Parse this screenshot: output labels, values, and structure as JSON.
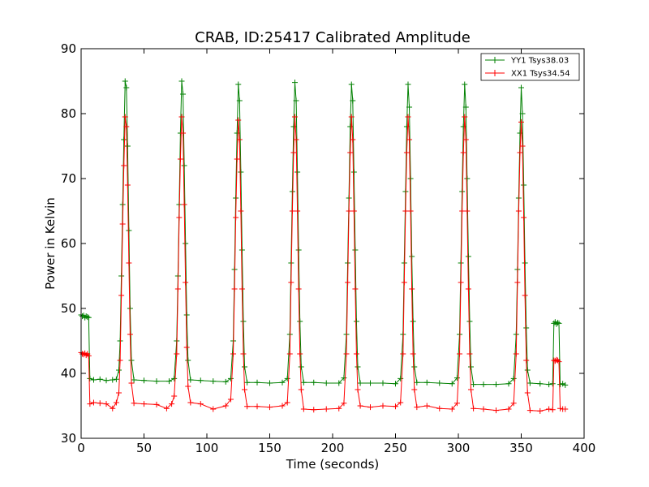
{
  "chart_data": {
    "type": "line",
    "title": "CRAB, ID:25417 Calibrated Amplitude",
    "xlabel": "Time (seconds)",
    "ylabel": "Power in Kelvin",
    "xlim": [
      0,
      400
    ],
    "ylim": [
      30,
      90
    ],
    "xticks": [
      0,
      50,
      100,
      150,
      200,
      250,
      300,
      350,
      400
    ],
    "yticks": [
      30,
      40,
      50,
      60,
      70,
      80,
      90
    ],
    "xtick_labels": [
      "0",
      "50",
      "100",
      "150",
      "200",
      "250",
      "300",
      "350",
      "400"
    ],
    "ytick_labels": [
      "30",
      "40",
      "50",
      "60",
      "70",
      "80",
      "90"
    ],
    "grid": false,
    "legend_position": "top-right",
    "marker": "+",
    "series": [
      {
        "name": "YY1 Tsys38.03",
        "color": "#008000",
        "points": [
          [
            0,
            49
          ],
          [
            1,
            48.8
          ],
          [
            2,
            48.9
          ],
          [
            3,
            48.6
          ],
          [
            4,
            48.8
          ],
          [
            5,
            48.7
          ],
          [
            6,
            48.6
          ],
          [
            7,
            39.2
          ],
          [
            10,
            39.0
          ],
          [
            15,
            39.1
          ],
          [
            20,
            38.9
          ],
          [
            25,
            39.0
          ],
          [
            28,
            39.1
          ],
          [
            30,
            40.5
          ],
          [
            31,
            45
          ],
          [
            32,
            55
          ],
          [
            33,
            66
          ],
          [
            34,
            76
          ],
          [
            35,
            85
          ],
          [
            36,
            84
          ],
          [
            37,
            75
          ],
          [
            38,
            62
          ],
          [
            39,
            50
          ],
          [
            40,
            42
          ],
          [
            42,
            39.0
          ],
          [
            50,
            38.9
          ],
          [
            60,
            38.8
          ],
          [
            70,
            38.8
          ],
          [
            74,
            39.2
          ],
          [
            76,
            45
          ],
          [
            77,
            55
          ],
          [
            78,
            66
          ],
          [
            79,
            77
          ],
          [
            80,
            85
          ],
          [
            81,
            83
          ],
          [
            82,
            72
          ],
          [
            83,
            60
          ],
          [
            84,
            49
          ],
          [
            85,
            42
          ],
          [
            87,
            39.0
          ],
          [
            95,
            38.9
          ],
          [
            105,
            38.8
          ],
          [
            115,
            38.7
          ],
          [
            119,
            39.2
          ],
          [
            121,
            45
          ],
          [
            122,
            56
          ],
          [
            123,
            67
          ],
          [
            124,
            77
          ],
          [
            125,
            84.5
          ],
          [
            126,
            82
          ],
          [
            127,
            71
          ],
          [
            128,
            59
          ],
          [
            129,
            48
          ],
          [
            130,
            41
          ],
          [
            132,
            38.6
          ],
          [
            140,
            38.6
          ],
          [
            150,
            38.5
          ],
          [
            160,
            38.6
          ],
          [
            164,
            39.2
          ],
          [
            166,
            46
          ],
          [
            167,
            57
          ],
          [
            168,
            68
          ],
          [
            169,
            78
          ],
          [
            170,
            84.8
          ],
          [
            171,
            82
          ],
          [
            172,
            71
          ],
          [
            173,
            59
          ],
          [
            174,
            48
          ],
          [
            175,
            41
          ],
          [
            177,
            38.6
          ],
          [
            185,
            38.6
          ],
          [
            195,
            38.5
          ],
          [
            205,
            38.5
          ],
          [
            209,
            39.3
          ],
          [
            211,
            46
          ],
          [
            212,
            57
          ],
          [
            213,
            67
          ],
          [
            214,
            78
          ],
          [
            215,
            84.5
          ],
          [
            216,
            82
          ],
          [
            217,
            71
          ],
          [
            218,
            59
          ],
          [
            219,
            48
          ],
          [
            220,
            41
          ],
          [
            222,
            38.5
          ],
          [
            230,
            38.5
          ],
          [
            240,
            38.5
          ],
          [
            250,
            38.4
          ],
          [
            254,
            39.2
          ],
          [
            256,
            46
          ],
          [
            257,
            57
          ],
          [
            258,
            68
          ],
          [
            259,
            78
          ],
          [
            260,
            84.5
          ],
          [
            261,
            81
          ],
          [
            262,
            70
          ],
          [
            263,
            58
          ],
          [
            264,
            48
          ],
          [
            265,
            41
          ],
          [
            267,
            38.6
          ],
          [
            275,
            38.6
          ],
          [
            285,
            38.5
          ],
          [
            295,
            38.4
          ],
          [
            299,
            39.3
          ],
          [
            301,
            46
          ],
          [
            302,
            57
          ],
          [
            303,
            68
          ],
          [
            304,
            78
          ],
          [
            305,
            84.5
          ],
          [
            306,
            81
          ],
          [
            307,
            70
          ],
          [
            308,
            58
          ],
          [
            309,
            48
          ],
          [
            310,
            41
          ],
          [
            312,
            38.3
          ],
          [
            320,
            38.3
          ],
          [
            330,
            38.3
          ],
          [
            340,
            38.4
          ],
          [
            344,
            39.2
          ],
          [
            346,
            46
          ],
          [
            347,
            56
          ],
          [
            348,
            67
          ],
          [
            349,
            77
          ],
          [
            350,
            84
          ],
          [
            351,
            80
          ],
          [
            352,
            69
          ],
          [
            353,
            57
          ],
          [
            354,
            47
          ],
          [
            355,
            40.5
          ],
          [
            357,
            38.5
          ],
          [
            365,
            38.4
          ],
          [
            372,
            38.3
          ],
          [
            375,
            38.4
          ],
          [
            376,
            47.7
          ],
          [
            377,
            47.9
          ],
          [
            378,
            47.6
          ],
          [
            379,
            47.8
          ],
          [
            380,
            47.7
          ],
          [
            381,
            38.3
          ],
          [
            383,
            38.4
          ],
          [
            385,
            38.2
          ]
        ]
      },
      {
        "name": "XX1 Tsys34.54",
        "color": "#ff0000",
        "points": [
          [
            0,
            43.2
          ],
          [
            1,
            43.0
          ],
          [
            2,
            42.9
          ],
          [
            3,
            43.1
          ],
          [
            4,
            42.8
          ],
          [
            5,
            43.0
          ],
          [
            6,
            42.7
          ],
          [
            7,
            35.3
          ],
          [
            10,
            35.5
          ],
          [
            15,
            35.4
          ],
          [
            20,
            35.3
          ],
          [
            25,
            34.6
          ],
          [
            28,
            35.5
          ],
          [
            30,
            37
          ],
          [
            31,
            42
          ],
          [
            32,
            52
          ],
          [
            33,
            63
          ],
          [
            34,
            72
          ],
          [
            35,
            79.5
          ],
          [
            36,
            78
          ],
          [
            37,
            69
          ],
          [
            38,
            57
          ],
          [
            39,
            46
          ],
          [
            40,
            38.5
          ],
          [
            42,
            35.4
          ],
          [
            50,
            35.3
          ],
          [
            60,
            35.2
          ],
          [
            68,
            34.6
          ],
          [
            72,
            35.3
          ],
          [
            74,
            36.5
          ],
          [
            76,
            43
          ],
          [
            77,
            53
          ],
          [
            78,
            64
          ],
          [
            79,
            73
          ],
          [
            80,
            79.5
          ],
          [
            81,
            77
          ],
          [
            82,
            66
          ],
          [
            83,
            54
          ],
          [
            84,
            44
          ],
          [
            85,
            38
          ],
          [
            87,
            35.5
          ],
          [
            95,
            35.3
          ],
          [
            105,
            34.5
          ],
          [
            115,
            35.0
          ],
          [
            119,
            36
          ],
          [
            121,
            43
          ],
          [
            122,
            53
          ],
          [
            123,
            64
          ],
          [
            124,
            73
          ],
          [
            125,
            79
          ],
          [
            126,
            76
          ],
          [
            127,
            65
          ],
          [
            128,
            53
          ],
          [
            129,
            43
          ],
          [
            130,
            37.5
          ],
          [
            132,
            34.9
          ],
          [
            140,
            34.9
          ],
          [
            150,
            34.8
          ],
          [
            160,
            35.0
          ],
          [
            164,
            35.5
          ],
          [
            166,
            43
          ],
          [
            167,
            54
          ],
          [
            168,
            65
          ],
          [
            169,
            74
          ],
          [
            170,
            79.5
          ],
          [
            171,
            76
          ],
          [
            172,
            65
          ],
          [
            173,
            53
          ],
          [
            174,
            43
          ],
          [
            175,
            37.5
          ],
          [
            177,
            34.5
          ],
          [
            185,
            34.4
          ],
          [
            195,
            34.5
          ],
          [
            205,
            34.6
          ],
          [
            209,
            35.4
          ],
          [
            211,
            43
          ],
          [
            212,
            54
          ],
          [
            213,
            65
          ],
          [
            214,
            74
          ],
          [
            215,
            79.5
          ],
          [
            216,
            76
          ],
          [
            217,
            65
          ],
          [
            218,
            53
          ],
          [
            219,
            43
          ],
          [
            220,
            37.5
          ],
          [
            222,
            35.0
          ],
          [
            230,
            34.8
          ],
          [
            240,
            35.0
          ],
          [
            250,
            34.9
          ],
          [
            254,
            35.5
          ],
          [
            256,
            43
          ],
          [
            257,
            54
          ],
          [
            258,
            65
          ],
          [
            259,
            74
          ],
          [
            260,
            79.5
          ],
          [
            261,
            76
          ],
          [
            262,
            65
          ],
          [
            263,
            53
          ],
          [
            264,
            43
          ],
          [
            265,
            37.5
          ],
          [
            267,
            34.8
          ],
          [
            275,
            35.0
          ],
          [
            285,
            34.6
          ],
          [
            295,
            34.5
          ],
          [
            299,
            35.4
          ],
          [
            301,
            43
          ],
          [
            302,
            54
          ],
          [
            303,
            65
          ],
          [
            304,
            74
          ],
          [
            305,
            79.5
          ],
          [
            306,
            76
          ],
          [
            307,
            65
          ],
          [
            308,
            53
          ],
          [
            309,
            43
          ],
          [
            310,
            37.5
          ],
          [
            312,
            34.6
          ],
          [
            320,
            34.5
          ],
          [
            330,
            34.3
          ],
          [
            340,
            34.5
          ],
          [
            344,
            35.4
          ],
          [
            346,
            43
          ],
          [
            347,
            54
          ],
          [
            348,
            65
          ],
          [
            349,
            74
          ],
          [
            350,
            78.7
          ],
          [
            351,
            75
          ],
          [
            352,
            64
          ],
          [
            353,
            52
          ],
          [
            354,
            42
          ],
          [
            355,
            37
          ],
          [
            357,
            34.3
          ],
          [
            365,
            34.2
          ],
          [
            372,
            34.5
          ],
          [
            375,
            34.4
          ],
          [
            376,
            42.0
          ],
          [
            377,
            41.9
          ],
          [
            378,
            42.1
          ],
          [
            379,
            42.0
          ],
          [
            380,
            41.8
          ],
          [
            381,
            34.6
          ],
          [
            383,
            34.5
          ],
          [
            385,
            34.5
          ]
        ]
      }
    ]
  }
}
